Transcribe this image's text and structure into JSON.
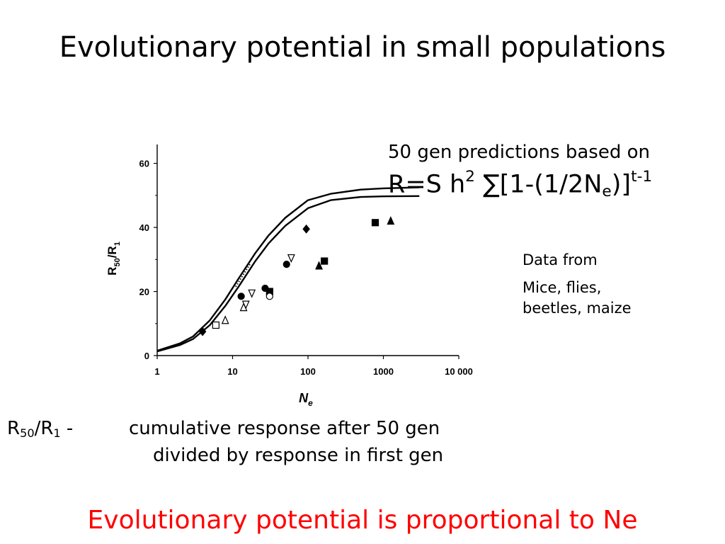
{
  "slide": {
    "title": "Evolutionary potential in small populations",
    "formula_intro": "50 gen predictions based on",
    "formula": {
      "p1": "R=S h",
      "p2": "2",
      "p3": " ∑[1-(1/2N",
      "p4": "e",
      "p5": ")]",
      "p6": "t-1"
    },
    "data_from": {
      "heading": "Data from",
      "line1": "Mice, flies,",
      "line2": "beetles, maize"
    },
    "definition": {
      "term_r": "R",
      "term_sub1": "50",
      "term_mid": "/R",
      "term_sub2": "1",
      "term_dash": " -",
      "line1": "cumulative response after 50 gen",
      "line2": "divided by response in first gen"
    },
    "conclusion": "Evolutionary potential is proportional to Ne",
    "colors": {
      "conclusion": "#ff0000",
      "text": "#000000",
      "ink": "#000000"
    }
  },
  "chart_data": {
    "type": "scatter",
    "xscale": "log",
    "xlim": [
      1,
      10000
    ],
    "ylim": [
      0,
      65
    ],
    "xticks": [
      1,
      10,
      100,
      1000,
      10000
    ],
    "xtick_labels": [
      "1",
      "10",
      "100",
      "1000",
      "10 000"
    ],
    "yticks": [
      0,
      20,
      40,
      60
    ],
    "ytick_labels": [
      "0",
      "20",
      "40",
      "60"
    ],
    "xlabel": {
      "main": "N",
      "sub": "e"
    },
    "ylabel": {
      "r": "R",
      "sub1": "50",
      "mid": "/R",
      "sub2": "1"
    },
    "curves": [
      {
        "points": [
          [
            1,
            1.5
          ],
          [
            2,
            3.8
          ],
          [
            3,
            6
          ],
          [
            5,
            11
          ],
          [
            8,
            17.5
          ],
          [
            12,
            24
          ],
          [
            20,
            32
          ],
          [
            30,
            37.5
          ],
          [
            50,
            43
          ],
          [
            100,
            48.5
          ],
          [
            200,
            50.5
          ],
          [
            500,
            51.8
          ],
          [
            1000,
            52.2
          ],
          [
            3000,
            52.5
          ]
        ]
      },
      {
        "points": [
          [
            1,
            1.3
          ],
          [
            2,
            3.3
          ],
          [
            3,
            5.2
          ],
          [
            5,
            9.5
          ],
          [
            8,
            15.5
          ],
          [
            12,
            21.5
          ],
          [
            20,
            29.5
          ],
          [
            30,
            35
          ],
          [
            50,
            40.5
          ],
          [
            100,
            46
          ],
          [
            200,
            48.5
          ],
          [
            500,
            49.5
          ],
          [
            1000,
            49.7
          ],
          [
            3000,
            49.8
          ]
        ]
      }
    ],
    "dotted_segment": [
      [
        11,
        21.5
      ],
      [
        17,
        28.5
      ]
    ],
    "markers": [
      {
        "shape": "diamond-filled",
        "x": 4,
        "y": 7.5
      },
      {
        "shape": "square-open",
        "x": 6,
        "y": 9.5
      },
      {
        "shape": "triangle-up-open",
        "x": 8,
        "y": 11
      },
      {
        "shape": "circle-filled",
        "x": 13,
        "y": 18.5
      },
      {
        "shape": "triangle-up-open",
        "x": 14,
        "y": 15
      },
      {
        "shape": "triangle-down-open",
        "x": 15,
        "y": 16
      },
      {
        "shape": "triangle-down-open",
        "x": 18,
        "y": 19.5
      },
      {
        "shape": "circle-filled",
        "x": 27,
        "y": 21
      },
      {
        "shape": "square-filled",
        "x": 31,
        "y": 20
      },
      {
        "shape": "circle-open",
        "x": 31,
        "y": 18.5
      },
      {
        "shape": "circle-filled",
        "x": 52,
        "y": 28.5
      },
      {
        "shape": "triangle-down-open",
        "x": 60,
        "y": 30.5
      },
      {
        "shape": "diamond-filled",
        "x": 95,
        "y": 39.5
      },
      {
        "shape": "triangle-up-filled",
        "x": 140,
        "y": 28
      },
      {
        "shape": "square-filled",
        "x": 165,
        "y": 29.5
      },
      {
        "shape": "square-filled",
        "x": 780,
        "y": 41.5
      },
      {
        "shape": "triangle-up-filled",
        "x": 1250,
        "y": 42
      }
    ]
  }
}
